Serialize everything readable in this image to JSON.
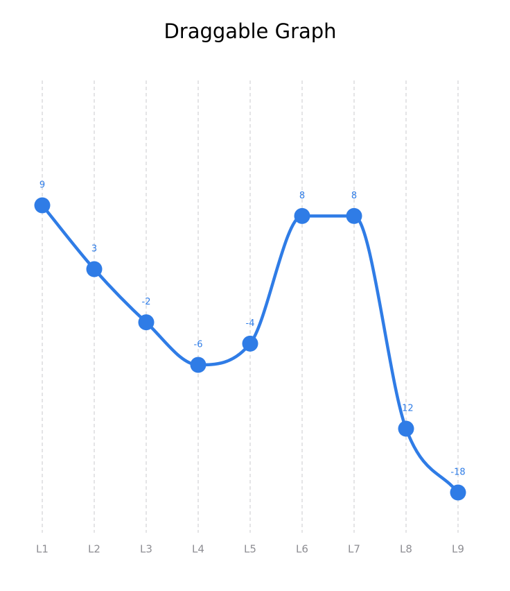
{
  "page": {
    "title": "Draggable Graph"
  },
  "chart_data": {
    "type": "line",
    "title": "Draggable Graph",
    "categories": [
      "L1",
      "L2",
      "L3",
      "L4",
      "L5",
      "L6",
      "L7",
      "L8",
      "L9"
    ],
    "values": [
      9,
      3,
      -2,
      -6,
      -4,
      8,
      8,
      -12,
      -18
    ],
    "ylim": [
      -22,
      20
    ],
    "xlabel": "",
    "ylabel": "",
    "grid": "vertical-dashed",
    "curve": "smooth",
    "data_labels": true,
    "colors": {
      "series": "#2f7ce6",
      "grid": "#c9c9cc",
      "tick_text": "#8e8e93"
    }
  }
}
